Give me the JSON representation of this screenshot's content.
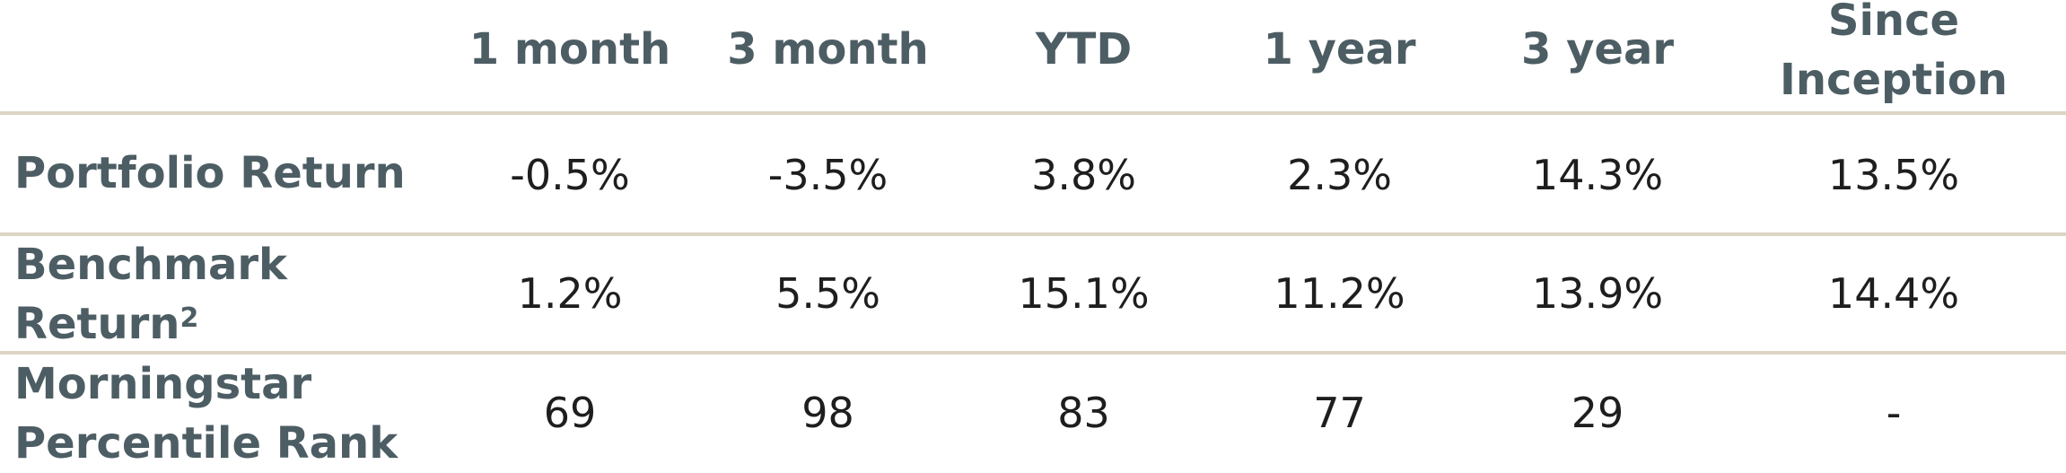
{
  "chart_data": {
    "type": "table",
    "columns": [
      "1 month",
      "3 month",
      "YTD",
      "1 year",
      "3 year",
      "Since Inception"
    ],
    "rows": [
      {
        "label": "Portfolio Return",
        "values": [
          "-0.5%",
          "-3.5%",
          "3.8%",
          "2.3%",
          "14.3%",
          "13.5%"
        ]
      },
      {
        "label": "Benchmark Return",
        "footnote": "2",
        "values": [
          "1.2%",
          "5.5%",
          "15.1%",
          "11.2%",
          "13.9%",
          "14.4%"
        ]
      },
      {
        "label": "Morningstar Percentile Rank",
        "values": [
          "69",
          "98",
          "83",
          "77",
          "29",
          "-"
        ]
      }
    ]
  },
  "colors": {
    "header_text": "#4d5d64",
    "cell_text": "#1e1e1e",
    "rule": "#dcd5c5",
    "background": "#ffffff"
  }
}
